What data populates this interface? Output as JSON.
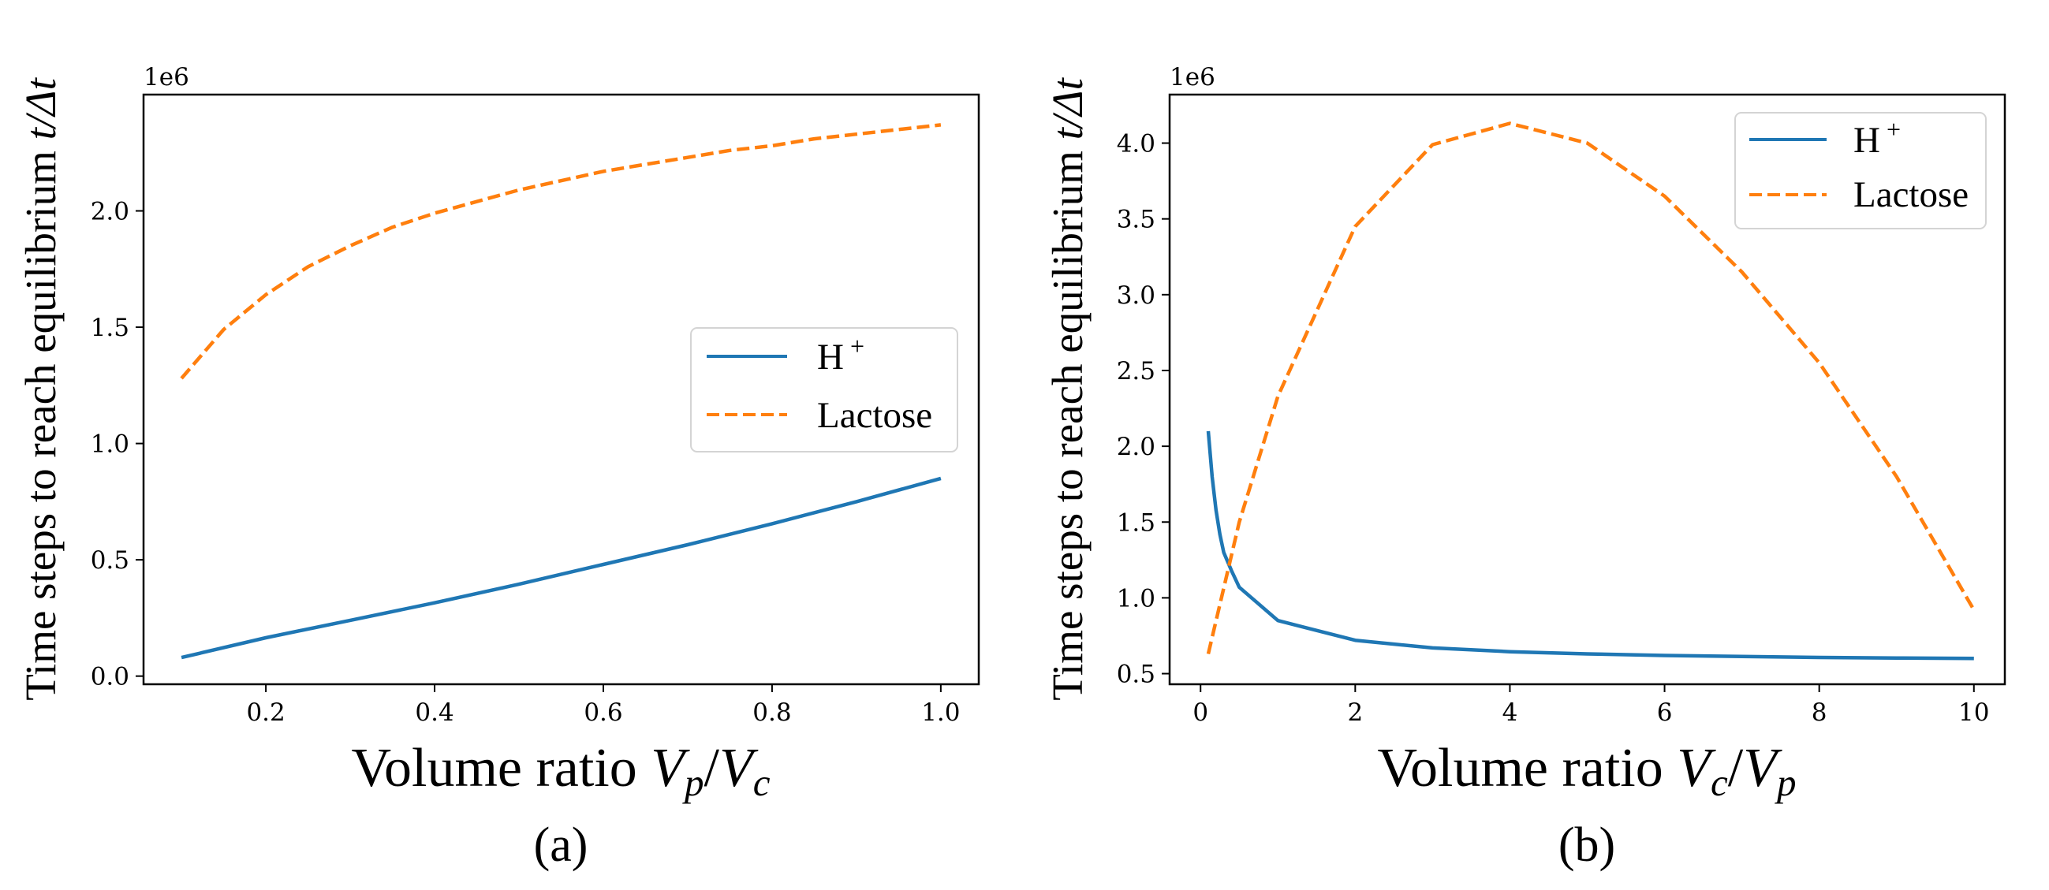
{
  "chart_data": [
    {
      "type": "line",
      "panel_label": "(a)",
      "scale_label": "1e6",
      "xlabel_text": "Volume ratio",
      "xlabel_math": {
        "v1": "V",
        "s1": "p",
        "slash": "/",
        "v2": "V",
        "s2": "c"
      },
      "ylabel_text": "Time steps to reach equilibrium",
      "ylabel_math": "t/Δt",
      "xlim": [
        0.055,
        1.045
      ],
      "ylim": [
        -0.035,
        2.5
      ],
      "xticks": [
        0.2,
        0.4,
        0.6,
        0.8,
        1.0
      ],
      "xtick_labels": [
        "0.2",
        "0.4",
        "0.6",
        "0.8",
        "1.0"
      ],
      "yticks": [
        0.0,
        0.5,
        1.0,
        1.5,
        2.0
      ],
      "ytick_labels": [
        "0.0",
        "0.5",
        "1.0",
        "1.5",
        "2.0"
      ],
      "legend_position": "center-right",
      "series": [
        {
          "name": "H",
          "name_sup": "+",
          "color": "#1f77b4",
          "style": "solid",
          "x": [
            0.1,
            0.2,
            0.3,
            0.4,
            0.5,
            0.6,
            0.7,
            0.8,
            0.9,
            1.0
          ],
          "y": [
            0.08,
            0.165,
            0.24,
            0.315,
            0.395,
            0.48,
            0.565,
            0.655,
            0.75,
            0.85
          ]
        },
        {
          "name": "Lactose",
          "name_sup": "",
          "color": "#ff7f0e",
          "style": "dashed",
          "x": [
            0.1,
            0.15,
            0.2,
            0.25,
            0.3,
            0.35,
            0.4,
            0.45,
            0.5,
            0.55,
            0.6,
            0.65,
            0.7,
            0.75,
            0.8,
            0.85,
            0.9,
            0.95,
            1.0
          ],
          "y": [
            1.28,
            1.49,
            1.64,
            1.76,
            1.85,
            1.93,
            1.99,
            2.04,
            2.09,
            2.13,
            2.17,
            2.2,
            2.23,
            2.26,
            2.28,
            2.31,
            2.33,
            2.35,
            2.37
          ]
        }
      ]
    },
    {
      "type": "line",
      "panel_label": "(b)",
      "scale_label": "1e6",
      "xlabel_text": "Volume ratio",
      "xlabel_math": {
        "v1": "V",
        "s1": "c",
        "slash": "/",
        "v2": "V",
        "s2": "p"
      },
      "ylabel_text": "Time steps to reach equilibrium",
      "ylabel_math": "t/Δt",
      "xlim": [
        -0.4,
        10.4
      ],
      "ylim": [
        0.43,
        4.32
      ],
      "xticks": [
        0,
        2,
        4,
        6,
        8,
        10
      ],
      "xtick_labels": [
        "0",
        "2",
        "4",
        "6",
        "8",
        "10"
      ],
      "yticks": [
        0.5,
        1.0,
        1.5,
        2.0,
        2.5,
        3.0,
        3.5,
        4.0
      ],
      "ytick_labels": [
        "0.5",
        "1.0",
        "1.5",
        "2.0",
        "2.5",
        "3.0",
        "3.5",
        "4.0"
      ],
      "legend_position": "top-right",
      "series": [
        {
          "name": "H",
          "name_sup": "+",
          "color": "#1f77b4",
          "style": "solid",
          "x": [
            0.1,
            0.15,
            0.2,
            0.25,
            0.3,
            0.4,
            0.5,
            1,
            2,
            3,
            4,
            5,
            6,
            7,
            8,
            9,
            10
          ],
          "y": [
            2.1,
            1.8,
            1.58,
            1.42,
            1.3,
            1.18,
            1.07,
            0.85,
            0.72,
            0.67,
            0.645,
            0.63,
            0.62,
            0.613,
            0.607,
            0.603,
            0.6
          ]
        },
        {
          "name": "Lactose",
          "name_sup": "",
          "color": "#ff7f0e",
          "style": "dashed",
          "x": [
            0.1,
            0.5,
            1,
            2,
            3,
            4,
            5,
            6,
            7,
            8,
            9,
            10
          ],
          "y": [
            0.63,
            1.5,
            2.33,
            3.45,
            3.99,
            4.13,
            4.0,
            3.65,
            3.15,
            2.55,
            1.8,
            0.92
          ]
        }
      ]
    }
  ]
}
